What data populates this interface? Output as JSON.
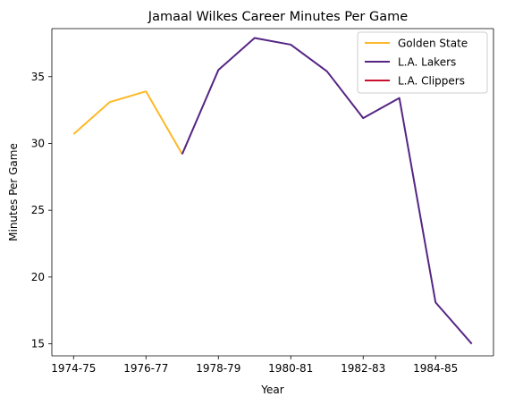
{
  "chart_data": {
    "type": "line",
    "title": "Jamaal Wilkes Career Minutes Per Game",
    "xlabel": "Year",
    "ylabel": "Minutes Per Game",
    "x_ticks": [
      "1974-75",
      "1976-77",
      "1978-79",
      "1980-81",
      "1982-83",
      "1984-85"
    ],
    "x_range": [
      -0.6,
      11.6
    ],
    "ylim": [
      14.1,
      38.6
    ],
    "y_ticks": [
      15,
      20,
      25,
      30,
      35
    ],
    "grid": false,
    "legend_position": "top-right",
    "series": [
      {
        "name": "Golden State",
        "color": "#FDB927",
        "points": [
          {
            "x": "1974-75",
            "y": 30.7
          },
          {
            "x": "1975-76",
            "y": 33.1
          },
          {
            "x": "1976-77",
            "y": 33.9
          },
          {
            "x": "1977-78",
            "y": 29.2
          }
        ]
      },
      {
        "name": "L.A. Lakers",
        "color": "#552583",
        "points": [
          {
            "x": "1977-78",
            "y": 29.2
          },
          {
            "x": "1978-79",
            "y": 35.5
          },
          {
            "x": "1979-80",
            "y": 37.9
          },
          {
            "x": "1980-81",
            "y": 37.4
          },
          {
            "x": "1981-82",
            "y": 35.4
          },
          {
            "x": "1982-83",
            "y": 31.9
          },
          {
            "x": "1983-84",
            "y": 33.4
          },
          {
            "x": "1984-85",
            "y": 18.1
          },
          {
            "x": "1985-86",
            "y": 15.0
          }
        ]
      },
      {
        "name": "L.A. Clippers",
        "color": "#C8102E",
        "points": []
      }
    ]
  }
}
